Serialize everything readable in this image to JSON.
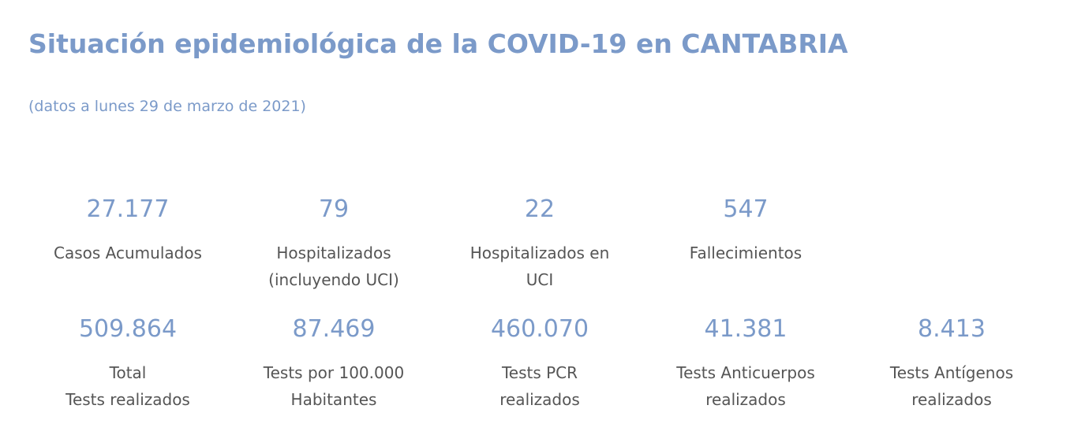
{
  "header": {
    "title": "Situación epidemiológica de la COVID-19 en CANTABRIA",
    "subtitle": "(datos a lunes 29 de marzo de 2021)"
  },
  "stats_row1": [
    {
      "value": "27.177",
      "label": "Casos Acumulados"
    },
    {
      "value": "79",
      "label": "Hospitalizados\n(incluyendo UCI)"
    },
    {
      "value": "22",
      "label": "Hospitalizados en\nUCI"
    },
    {
      "value": "547",
      "label": "Fallecimientos"
    }
  ],
  "stats_row2": [
    {
      "value": "509.864",
      "label": "Total\nTests realizados"
    },
    {
      "value": "87.469",
      "label": "Tests por 100.000\nHabitantes"
    },
    {
      "value": "460.070",
      "label": "Tests PCR\nrealizados"
    },
    {
      "value": "41.381",
      "label": "Tests Anticuerpos\nrealizados"
    },
    {
      "value": "8.413",
      "label": "Tests Antígenos\nrealizados"
    }
  ],
  "colors": {
    "accent": "#7b9ac9",
    "label_text": "#555555"
  }
}
